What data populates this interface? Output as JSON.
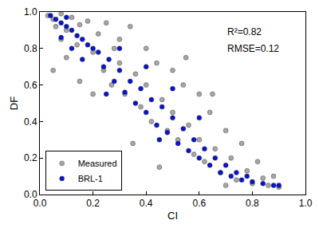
{
  "chart_data": {
    "type": "scatter",
    "x_label": "CI",
    "y_label": "DF",
    "xlim": [
      0,
      1
    ],
    "ylim": [
      0,
      1
    ],
    "xticks": [
      {
        "value": 0,
        "label": "0.0"
      },
      0.2,
      0.4,
      0.6,
      0.8,
      {
        "value": 1,
        "label": "1.0"
      }
    ],
    "yticks": [
      {
        "value": 0,
        "label": "0.0"
      },
      0.2,
      0.4,
      0.6,
      0.8,
      {
        "value": 1,
        "label": "1.0"
      }
    ],
    "grid": false,
    "legend": "bottom left",
    "marker": "circle",
    "annotations": [
      "R²=0.82",
      "RMSE=0.12"
    ],
    "series": [
      {
        "name": "Measured",
        "color": "#a6a6a6",
        "x": [
          0.03,
          0.05,
          0.06,
          0.08,
          0.1,
          0.12,
          0.14,
          0.15,
          0.05,
          0.1,
          0.18,
          0.2,
          0.22,
          0.24,
          0.25,
          0.27,
          0.3,
          0.3,
          0.32,
          0.34,
          0.36,
          0.38,
          0.4,
          0.4,
          0.42,
          0.44,
          0.46,
          0.48,
          0.5,
          0.5,
          0.52,
          0.54,
          0.56,
          0.58,
          0.6,
          0.6,
          0.62,
          0.64,
          0.66,
          0.68,
          0.7,
          0.72,
          0.74,
          0.76,
          0.78,
          0.8,
          0.82,
          0.84,
          0.86,
          0.88,
          0.9,
          0.35,
          0.45,
          0.2,
          0.15,
          0.55,
          0.65,
          0.08,
          0.28,
          0.7
        ],
        "values": [
          0.98,
          0.96,
          0.92,
          0.99,
          0.9,
          0.97,
          0.82,
          0.93,
          0.68,
          0.75,
          0.95,
          0.78,
          0.88,
          0.68,
          0.94,
          0.6,
          0.85,
          0.72,
          0.55,
          0.92,
          0.66,
          0.48,
          0.8,
          0.6,
          0.4,
          0.72,
          0.52,
          0.35,
          0.68,
          0.45,
          0.3,
          0.6,
          0.38,
          0.22,
          0.55,
          0.3,
          0.18,
          0.45,
          0.25,
          0.12,
          0.35,
          0.2,
          0.08,
          0.28,
          0.13,
          0.06,
          0.18,
          0.09,
          0.05,
          0.1,
          0.04,
          0.28,
          0.15,
          0.55,
          0.62,
          0.75,
          0.55,
          0.85,
          0.8,
          0.05
        ]
      },
      {
        "name": "BRL-1",
        "color": "#0a14c8",
        "x": [
          0.04,
          0.06,
          0.08,
          0.1,
          0.12,
          0.14,
          0.16,
          0.18,
          0.2,
          0.08,
          0.12,
          0.16,
          0.22,
          0.24,
          0.26,
          0.28,
          0.3,
          0.32,
          0.34,
          0.36,
          0.38,
          0.4,
          0.42,
          0.44,
          0.46,
          0.48,
          0.5,
          0.52,
          0.54,
          0.56,
          0.58,
          0.6,
          0.62,
          0.64,
          0.66,
          0.68,
          0.7,
          0.72,
          0.74,
          0.76,
          0.78,
          0.8,
          0.84,
          0.88,
          0.9,
          0.3,
          0.4,
          0.5,
          0.6,
          0.25,
          0.45,
          0.1
        ],
        "values": [
          0.98,
          0.96,
          0.94,
          0.92,
          0.9,
          0.87,
          0.85,
          0.82,
          0.8,
          0.86,
          0.8,
          0.74,
          0.78,
          0.7,
          0.74,
          0.62,
          0.68,
          0.56,
          0.62,
          0.5,
          0.58,
          0.45,
          0.52,
          0.38,
          0.48,
          0.34,
          0.42,
          0.28,
          0.36,
          0.24,
          0.3,
          0.2,
          0.25,
          0.16,
          0.2,
          0.12,
          0.16,
          0.1,
          0.12,
          0.08,
          0.1,
          0.07,
          0.06,
          0.05,
          0.05,
          0.8,
          0.7,
          0.58,
          0.42,
          0.55,
          0.3,
          0.97
        ]
      }
    ]
  }
}
